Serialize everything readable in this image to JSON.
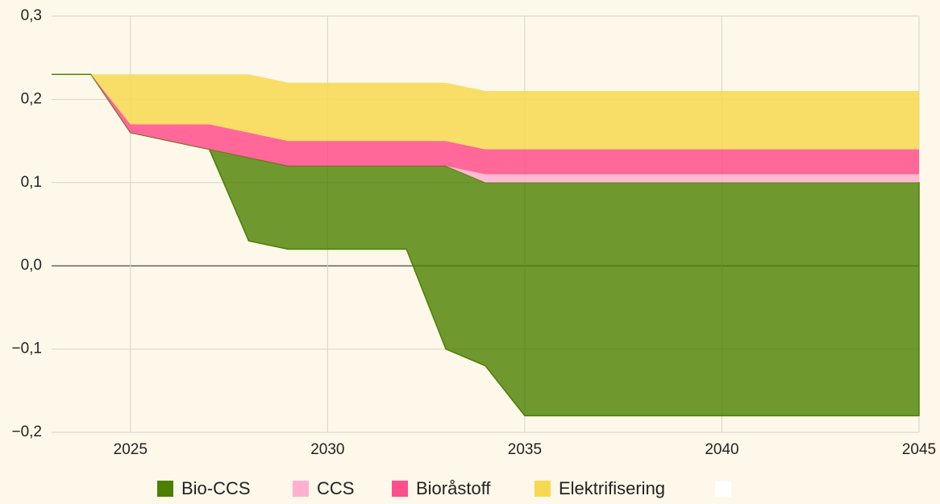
{
  "chart_data": {
    "type": "area",
    "x": [
      2023,
      2024,
      2025,
      2026,
      2027,
      2028,
      2029,
      2030,
      2031,
      2032,
      2033,
      2034,
      2035,
      2036,
      2037,
      2038,
      2039,
      2040,
      2041,
      2042,
      2043,
      2044,
      2045
    ],
    "xlim": [
      2023,
      2045
    ],
    "xticks": [
      2025,
      2030,
      2035,
      2040,
      2045
    ],
    "ylim": [
      -0.2,
      0.3
    ],
    "yticks": [
      {
        "value": -0.2,
        "label": "−0,2"
      },
      {
        "value": -0.1,
        "label": "−0,1"
      },
      {
        "value": 0,
        "label": "0,0"
      },
      {
        "value": 0.1,
        "label": "0,1"
      },
      {
        "value": 0.2,
        "label": "0,2"
      },
      {
        "value": 0.3,
        "label": "0,3"
      }
    ],
    "grid": true,
    "series": [
      {
        "name": "Bio-CCS",
        "color": "#4b8000",
        "low": [
          0.23,
          0.23,
          0.16,
          0.15,
          0.14,
          0.03,
          0.02,
          0.02,
          0.02,
          0.02,
          -0.1,
          -0.12,
          -0.18,
          -0.18,
          -0.18,
          -0.18,
          -0.18,
          -0.18,
          -0.18,
          -0.18,
          -0.18,
          -0.18,
          -0.18
        ],
        "values": [
          0.23,
          0.23,
          0.16,
          0.15,
          0.14,
          0.13,
          0.12,
          0.12,
          0.12,
          0.12,
          0.12,
          0.1,
          0.1,
          0.1,
          0.1,
          0.1,
          0.1,
          0.1,
          0.1,
          0.1,
          0.1,
          0.1,
          0.1
        ]
      },
      {
        "name": "CCS",
        "color": "#ffb0d0",
        "values": [
          0.23,
          0.23,
          0.16,
          0.15,
          0.14,
          0.13,
          0.12,
          0.12,
          0.12,
          0.12,
          0.12,
          0.11,
          0.11,
          0.11,
          0.11,
          0.11,
          0.11,
          0.11,
          0.11,
          0.11,
          0.11,
          0.11,
          0.11
        ]
      },
      {
        "name": "Bioråstoff",
        "color": "#ff4f8b",
        "values": [
          0.23,
          0.23,
          0.17,
          0.17,
          0.17,
          0.16,
          0.15,
          0.15,
          0.15,
          0.15,
          0.15,
          0.14,
          0.14,
          0.14,
          0.14,
          0.14,
          0.14,
          0.14,
          0.14,
          0.14,
          0.14,
          0.14,
          0.14
        ]
      },
      {
        "name": "Elektrifisering",
        "color": "#f7d950",
        "values": [
          0.23,
          0.23,
          0.23,
          0.23,
          0.23,
          0.23,
          0.22,
          0.22,
          0.22,
          0.22,
          0.22,
          0.21,
          0.21,
          0.21,
          0.21,
          0.21,
          0.21,
          0.21,
          0.21,
          0.21,
          0.21,
          0.21,
          0.21
        ]
      }
    ]
  }
}
